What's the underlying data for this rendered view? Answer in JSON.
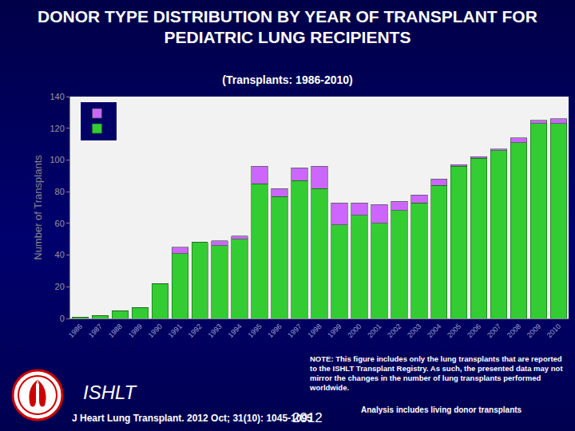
{
  "chart_data": {
    "type": "bar",
    "title": "DONOR TYPE DISTRIBUTION BY YEAR OF TRANSPLANT FOR PEDIATRIC LUNG RECIPIENTS",
    "subtitle": "(Transplants: 1986-2010)",
    "y_label": "Number of Transplants",
    "categories": [
      "1986",
      "1987",
      "1988",
      "1989",
      "1990",
      "1991",
      "1992",
      "1993",
      "1994",
      "1995",
      "1996",
      "1997",
      "1998",
      "1999",
      "2000",
      "2001",
      "2002",
      "2003",
      "2004",
      "2005",
      "2006",
      "2007",
      "2008",
      "2009",
      "2010"
    ],
    "series": [
      {
        "color": "#33cc33",
        "values": [
          1,
          2,
          5,
          7,
          22,
          41,
          48,
          46,
          50,
          85,
          77,
          87,
          82,
          59,
          65,
          60,
          68,
          73,
          84,
          96,
          101,
          106,
          111,
          123,
          123
        ]
      },
      {
        "color": "#cc66ff",
        "values": [
          0,
          0,
          0,
          0,
          0,
          4,
          0,
          3,
          2,
          11,
          5,
          8,
          14,
          14,
          8,
          12,
          6,
          5,
          4,
          1,
          1,
          1,
          3,
          2,
          3
        ]
      }
    ],
    "stacked": true,
    "legend": "top left",
    "grid": false,
    "ylim": [
      0,
      140
    ],
    "yticks": [
      0,
      20,
      40,
      60,
      80,
      100,
      120,
      140
    ]
  },
  "footer": {
    "logo": "ISHLT",
    "year": "2012",
    "citation": "J Heart Lung Transplant. 2012 Oct; 31(10): 1045-1095",
    "note": "NOTE: This figure includes only the lung transplants that are reported to the ISHLT Transplant Registry. As such, the presented data may not mirror the changes in the number of lung transplants performed worldwide.",
    "analysis": "Analysis includes living donor transplants"
  }
}
